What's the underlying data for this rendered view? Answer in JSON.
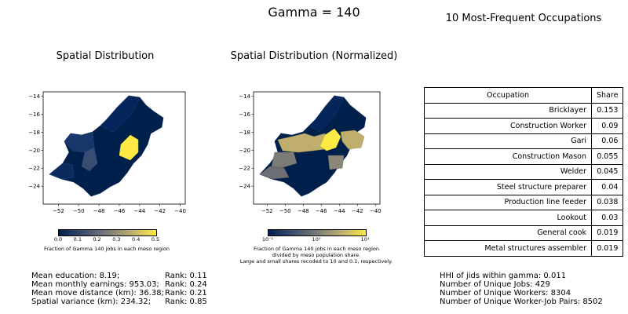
{
  "suptitle": "Gamma = 140",
  "map1": {
    "title": "Spatial Distribution",
    "yticks": [
      "−14",
      "−16",
      "−18",
      "−20",
      "−22",
      "−24"
    ],
    "xticks": [
      "−52",
      "−50",
      "−48",
      "−46",
      "−44",
      "−42",
      "−40"
    ],
    "colorbar_ticks": [
      "0.0",
      "0.1",
      "0.2",
      "0.3",
      "0.4",
      "0.5"
    ],
    "colorbar_label": "Fraction of Gamma 140 jobs in each meso region"
  },
  "map2": {
    "title": "Spatial Distribution (Normalized)",
    "yticks": [
      "−14",
      "−16",
      "−18",
      "−20",
      "−22",
      "−24"
    ],
    "xticks": [
      "−52",
      "−50",
      "−48",
      "−46",
      "−44",
      "−42",
      "−40"
    ],
    "colorbar_ticks": [
      "10⁻¹",
      "10⁰",
      "10¹"
    ],
    "colorbar_label_lines": [
      "Fraction of Gamma 140 jobs in each meso region",
      "divided by meso population share.",
      "Large and small shares recoded to 10 and 0.1, respectively."
    ]
  },
  "colors": {
    "cmap_low": "#00204c",
    "cmap_mid": "#7c7b78",
    "cmap_high": "#ffe945"
  },
  "table": {
    "title": "10 Most-Frequent Occupations",
    "col_occupation": "Occupation",
    "col_share": "Share",
    "rows": [
      {
        "occupation": "Bricklayer",
        "share": "0.153"
      },
      {
        "occupation": "Construction Worker",
        "share": "0.09"
      },
      {
        "occupation": "Gari",
        "share": "0.06"
      },
      {
        "occupation": "Construction Mason",
        "share": "0.055"
      },
      {
        "occupation": "Welder",
        "share": "0.045"
      },
      {
        "occupation": "Steel structure preparer",
        "share": "0.04"
      },
      {
        "occupation": "Production line feeder",
        "share": "0.038"
      },
      {
        "occupation": "Lookout",
        "share": "0.03"
      },
      {
        "occupation": "General cook",
        "share": "0.019"
      },
      {
        "occupation": "Metal structures assembler",
        "share": "0.019"
      }
    ]
  },
  "stats_left": [
    {
      "label": "Mean education: 8.19;",
      "rank": "Rank: 0.11"
    },
    {
      "label": "Mean monthly earnings: 953.03;",
      "rank": "Rank: 0.24"
    },
    {
      "label": "Mean move distance (km): 36.38;",
      "rank": "Rank: 0.21"
    },
    {
      "label": "Spatial variance (km): 234.32;",
      "rank": "Rank: 0.85"
    }
  ],
  "stats_right": [
    "HHI of jids within gamma: 0.011",
    "Number of Unique Jobs: 429",
    "Number of Unique Workers: 8304",
    "Number of Unique Worker-Job Pairs: 8502"
  ],
  "chart_data": [
    {
      "type": "heatmap",
      "title": "Spatial Distribution",
      "xlim": [
        -53.5,
        -39.5
      ],
      "ylim": [
        -26,
        -13.5
      ],
      "xticks": [
        -52,
        -50,
        -48,
        -46,
        -44,
        -42,
        -40
      ],
      "yticks": [
        -24,
        -22,
        -20,
        -18,
        -16,
        -14
      ],
      "colorbar": {
        "min": 0.0,
        "max": 0.5,
        "scale": "linear"
      },
      "regions_shown": "Minas Gerais meso regions; one central region high (~0.45), most regions near 0"
    },
    {
      "type": "heatmap",
      "title": "Spatial Distribution (Normalized)",
      "xlim": [
        -53.5,
        -39.5
      ],
      "ylim": [
        -26,
        -13.5
      ],
      "xticks": [
        -52,
        -50,
        -48,
        -46,
        -44,
        -42,
        -40
      ],
      "yticks": [
        -24,
        -22,
        -20,
        -18,
        -16,
        -14
      ],
      "colorbar": {
        "min": 0.1,
        "max": 10,
        "scale": "log"
      }
    },
    {
      "type": "table",
      "title": "10 Most-Frequent Occupations",
      "columns": [
        "Occupation",
        "Share"
      ],
      "values": [
        0.153,
        0.09,
        0.06,
        0.055,
        0.045,
        0.04,
        0.038,
        0.03,
        0.019,
        0.019
      ]
    }
  ]
}
